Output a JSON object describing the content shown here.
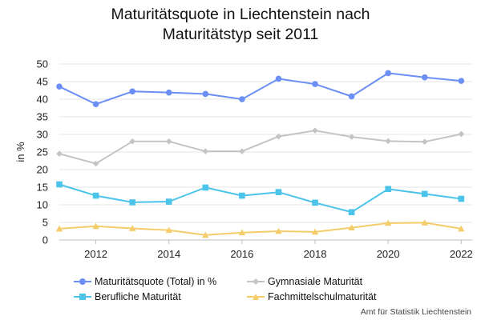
{
  "chart_data": {
    "type": "line",
    "title_lines": [
      "Maturitätsquote in Liechtenstein nach",
      "Maturitätstyp seit 2011"
    ],
    "ylabel": "in %",
    "xlabel": "",
    "ylim": [
      0,
      50
    ],
    "yticks": [
      0,
      5,
      10,
      15,
      20,
      25,
      30,
      35,
      40,
      45,
      50
    ],
    "xlim": [
      2011,
      2022.3
    ],
    "xticks": [
      2012,
      2014,
      2016,
      2018,
      2020,
      2022
    ],
    "grid": true,
    "legend_position": "bottom",
    "x": [
      2011,
      2012,
      2013,
      2014,
      2015,
      2016,
      2017,
      2018,
      2019,
      2020,
      2021,
      2022
    ],
    "series": [
      {
        "name": "Maturitätsquote (Total) in %",
        "color": "#6b8ff5",
        "marker": "circle",
        "values": [
          43.6,
          38.6,
          42.2,
          41.9,
          41.5,
          40.0,
          45.8,
          44.3,
          40.8,
          47.4,
          46.2,
          45.2
        ]
      },
      {
        "name": "Gymnasiale Maturität",
        "color": "#c4c4c4",
        "marker": "diamond",
        "values": [
          24.5,
          21.7,
          28.0,
          28.0,
          25.2,
          25.2,
          29.4,
          31.1,
          29.3,
          28.1,
          27.9,
          30.1
        ]
      },
      {
        "name": "Berufliche Maturität",
        "color": "#4cc4ea",
        "marker": "square",
        "values": [
          15.8,
          12.6,
          10.7,
          10.9,
          14.9,
          12.6,
          13.6,
          10.6,
          7.9,
          14.5,
          13.1,
          11.7
        ]
      },
      {
        "name": "Fachmittelschulmaturität",
        "color": "#f4cd6a",
        "marker": "triangle",
        "values": [
          3.2,
          3.9,
          3.3,
          2.8,
          1.4,
          2.1,
          2.5,
          2.3,
          3.5,
          4.8,
          4.9,
          3.2
        ]
      }
    ],
    "source": "Amt für Statistik Liechtenstein"
  }
}
